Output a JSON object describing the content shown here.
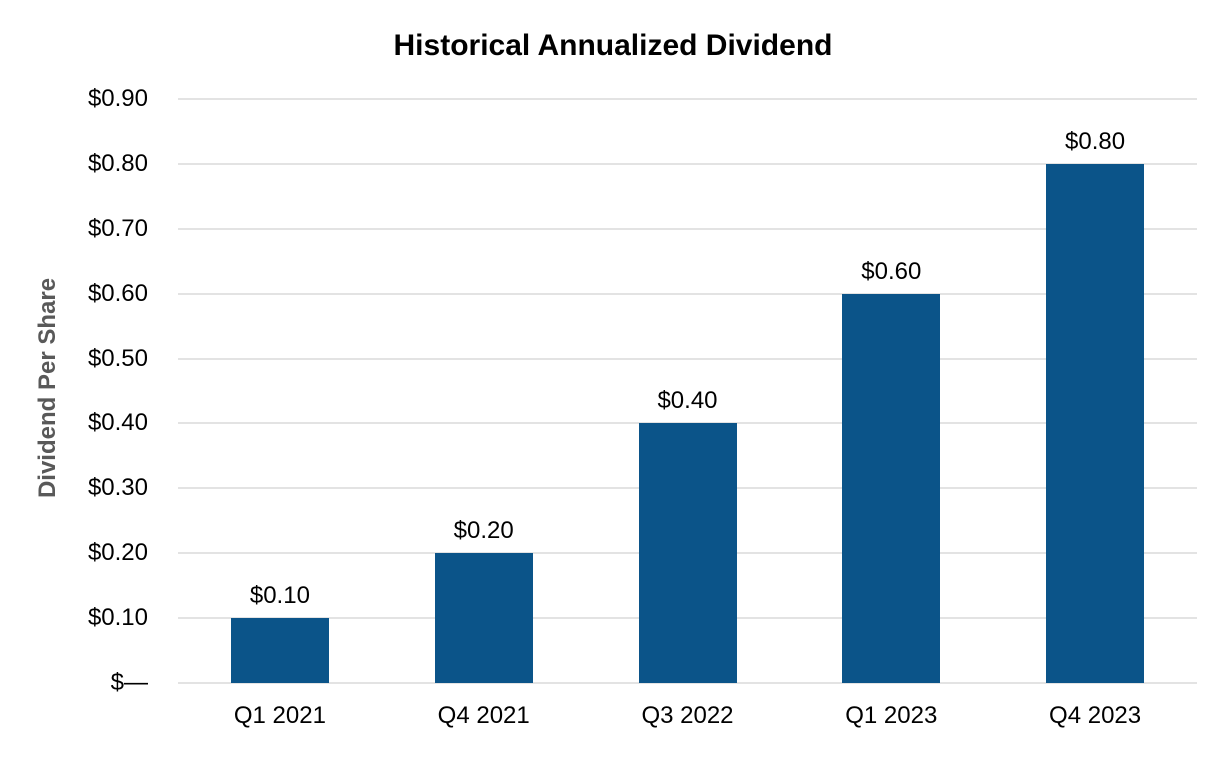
{
  "chart_data": {
    "type": "bar",
    "title": "Historical Annualized Dividend",
    "ylabel": "Dividend Per Share",
    "xlabel": "",
    "categories": [
      "Q1 2021",
      "Q4 2021",
      "Q3 2022",
      "Q1 2023",
      "Q4 2023"
    ],
    "values": [
      0.1,
      0.2,
      0.4,
      0.6,
      0.8
    ],
    "value_labels": [
      "$0.10",
      "$0.20",
      "$0.40",
      "$0.60",
      "$0.80"
    ],
    "ylim": [
      0,
      0.9
    ],
    "y_ticks": [
      {
        "value": 0.9,
        "label": "$0.90"
      },
      {
        "value": 0.8,
        "label": "$0.80"
      },
      {
        "value": 0.7,
        "label": "$0.70"
      },
      {
        "value": 0.6,
        "label": "$0.60"
      },
      {
        "value": 0.5,
        "label": "$0.50"
      },
      {
        "value": 0.4,
        "label": "$0.40"
      },
      {
        "value": 0.3,
        "label": "$0.30"
      },
      {
        "value": 0.2,
        "label": "$0.20"
      },
      {
        "value": 0.1,
        "label": "$0.10"
      },
      {
        "value": 0.0,
        "label": "$—"
      }
    ],
    "grid": "horizontal",
    "legend": "none",
    "colors": {
      "bar": "#0B5489",
      "gridline": "#E3E3E3",
      "axis_title": "#595959",
      "text": "#000000",
      "background": "#FFFFFF"
    }
  }
}
